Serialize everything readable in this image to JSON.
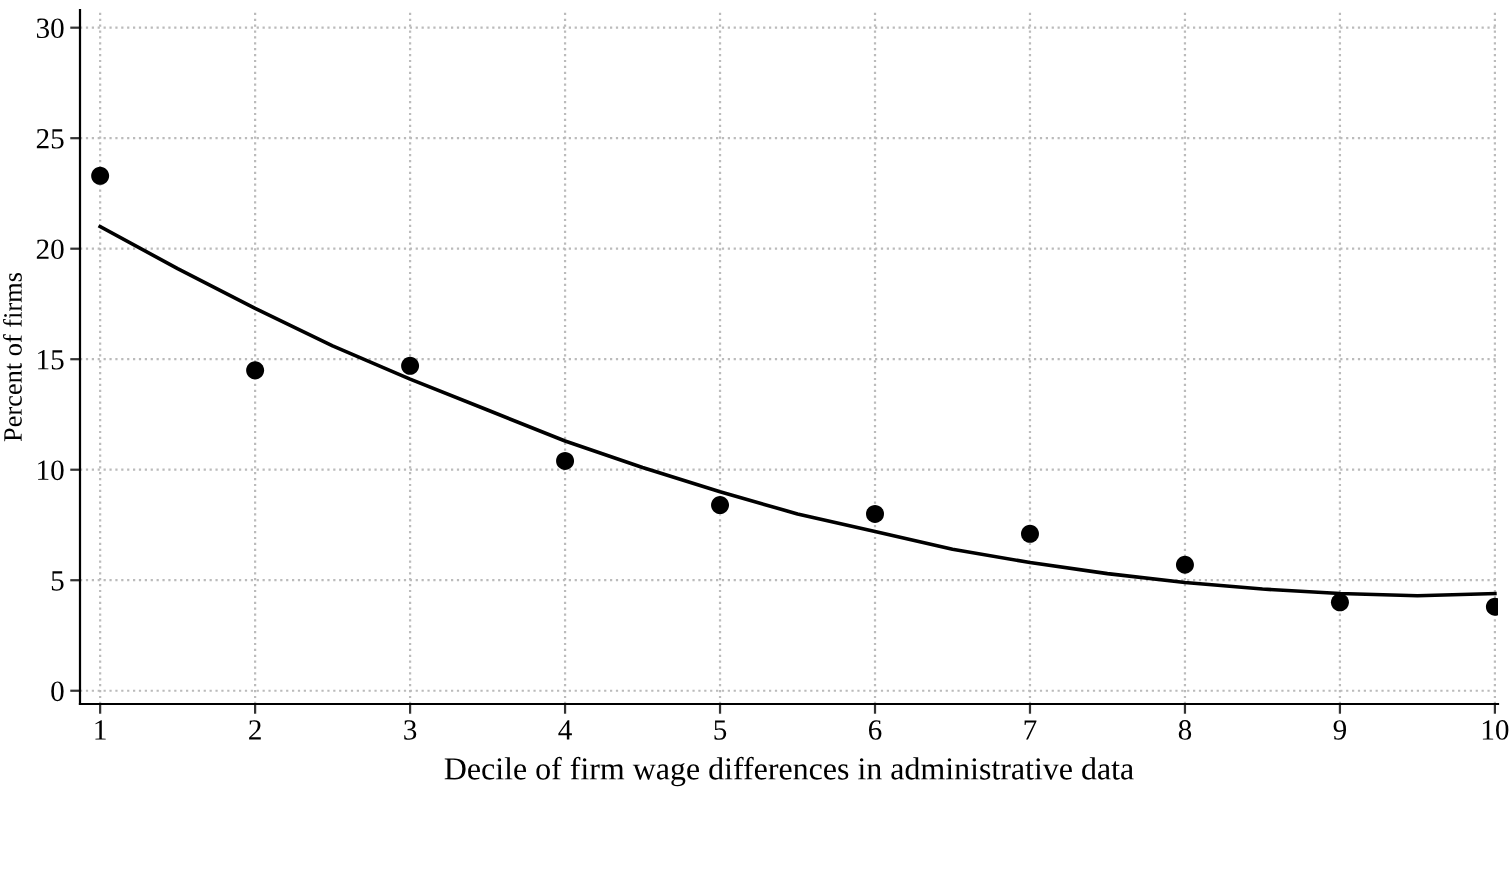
{
  "chart_data": {
    "type": "scatter",
    "xlabel": "Decile of firm wage differences in administrative data",
    "ylabel": "Percent of firms",
    "x": [
      1,
      2,
      3,
      4,
      5,
      6,
      7,
      8,
      9,
      10
    ],
    "series": [
      {
        "color": "#000000",
        "marker": "circle",
        "values": [
          23.3,
          14.5,
          14.7,
          10.4,
          8.4,
          8.0,
          7.1,
          5.7,
          4.0,
          3.8
        ]
      },
      {
        "type": "line",
        "color": "#000000",
        "line_style": "solid",
        "x": [
          1,
          1.5,
          2,
          2.5,
          3,
          3.5,
          4,
          4.5,
          5,
          5.5,
          6,
          6.5,
          7,
          7.5,
          8,
          8.5,
          9,
          9.5,
          10
        ],
        "values": [
          21.0,
          19.1,
          17.3,
          15.6,
          14.1,
          12.7,
          11.3,
          10.1,
          9.0,
          8.0,
          7.2,
          6.4,
          5.8,
          5.3,
          4.9,
          4.6,
          4.4,
          4.3,
          4.4
        ]
      }
    ],
    "xlim": [
      0.87,
      10.02
    ],
    "ylim": [
      -0.6,
      30.8
    ],
    "xticks": [
      1,
      2,
      3,
      4,
      5,
      6,
      7,
      8,
      9,
      10
    ],
    "yticks": [
      0,
      5,
      10,
      15,
      20,
      25,
      30
    ],
    "grid": true,
    "legend": false
  }
}
